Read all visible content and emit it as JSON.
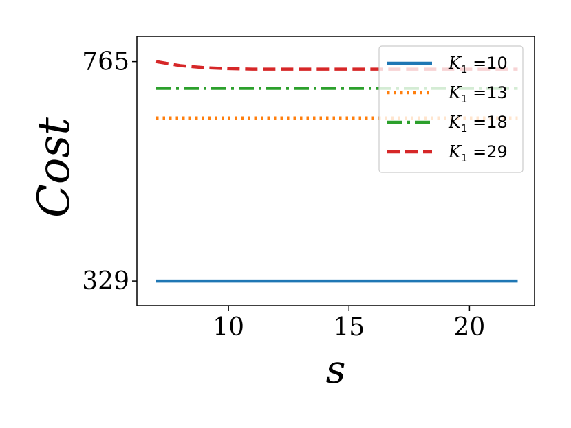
{
  "chart_data": {
    "type": "line",
    "xlabel": "s",
    "ylabel": "Cost",
    "xlim": [
      6.2,
      22.7
    ],
    "ylim": [
      280,
      815
    ],
    "x_ticks": [
      10,
      15,
      20
    ],
    "x_tick_labels": [
      "10",
      "15",
      "20"
    ],
    "y_ticks": [
      329,
      765
    ],
    "y_tick_labels": [
      "329",
      "765"
    ],
    "grid": false,
    "legend_position": "top-right",
    "x": [
      7,
      8,
      9,
      10,
      11,
      12,
      13,
      14,
      15,
      16,
      17,
      18,
      19,
      20,
      21,
      22
    ],
    "series": [
      {
        "name": "K",
        "subscript": "1",
        "suffix": " =10",
        "color": "#1f77b4",
        "style": "solid",
        "values": [
          329,
          329,
          329,
          329,
          329,
          329,
          329,
          329,
          329,
          329,
          329,
          329,
          329,
          329,
          329,
          329
        ]
      },
      {
        "name": "K",
        "subscript": "1",
        "suffix": " =13",
        "color": "#ff7f0e",
        "style": "dotted",
        "values": [
          653,
          653,
          653,
          653,
          653,
          653,
          653,
          653,
          653,
          653,
          653,
          653,
          653,
          653,
          653,
          653
        ]
      },
      {
        "name": "K",
        "subscript": "1",
        "suffix": " =18",
        "color": "#2ca02c",
        "style": "dashdot",
        "values": [
          712,
          712,
          712,
          712,
          712,
          712,
          712,
          712,
          712,
          712,
          712,
          712,
          712,
          712,
          712,
          712
        ]
      },
      {
        "name": "K",
        "subscript": "1",
        "suffix": " =29",
        "color": "#d62728",
        "style": "dashed",
        "values": [
          765,
          757,
          753,
          751,
          750,
          750,
          750,
          750,
          750,
          750,
          750,
          750,
          750,
          750,
          750,
          750
        ]
      }
    ]
  }
}
